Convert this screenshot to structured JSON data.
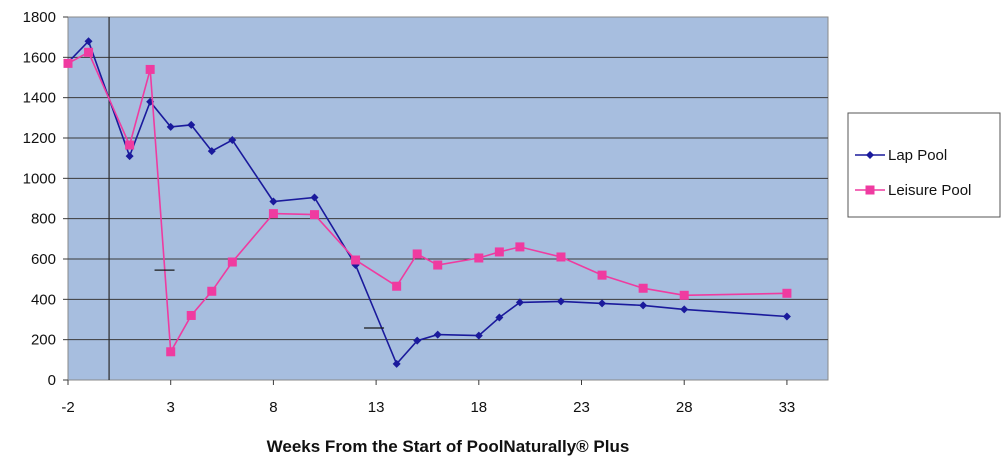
{
  "chart_data": {
    "type": "line",
    "title": "",
    "xlabel": "Weeks From the Start of PoolNaturally® Plus",
    "ylabel": "",
    "xlim": [
      -2,
      35
    ],
    "ylim": [
      0,
      1800
    ],
    "x_ticks": [
      -2,
      3,
      8,
      13,
      18,
      23,
      28,
      33
    ],
    "y_ticks": [
      0,
      200,
      400,
      600,
      800,
      1000,
      1200,
      1400,
      1600,
      1800
    ],
    "grid": "horizontal",
    "legend": "right",
    "plot_background": "#a7bedf",
    "reference_line_x": 0,
    "extra_marks": [
      {
        "x": 2.7,
        "y": 545
      },
      {
        "x": 12.9,
        "y": 258
      }
    ],
    "series": [
      {
        "name": "Lap Pool",
        "color": "#1a1a9c",
        "marker": "diamond",
        "x": [
          -2,
          -1,
          1,
          2,
          3,
          4,
          5,
          6,
          8,
          10,
          12,
          14,
          15,
          16,
          18,
          19,
          20,
          22,
          24,
          26,
          28,
          33
        ],
        "y": [
          1575,
          1680,
          1110,
          1380,
          1255,
          1265,
          1135,
          1190,
          885,
          905,
          570,
          80,
          195,
          225,
          220,
          310,
          385,
          390,
          380,
          370,
          350,
          315
        ]
      },
      {
        "name": "Leisure Pool",
        "color": "#ef3ba0",
        "marker": "square",
        "x": [
          -2,
          -1,
          1,
          2,
          3,
          4,
          5,
          6,
          8,
          10,
          12,
          14,
          15,
          16,
          18,
          19,
          20,
          22,
          24,
          26,
          28,
          33
        ],
        "y": [
          1570,
          1625,
          1165,
          1540,
          140,
          320,
          440,
          585,
          825,
          820,
          595,
          465,
          625,
          570,
          605,
          635,
          660,
          610,
          520,
          455,
          420,
          430
        ]
      }
    ]
  }
}
